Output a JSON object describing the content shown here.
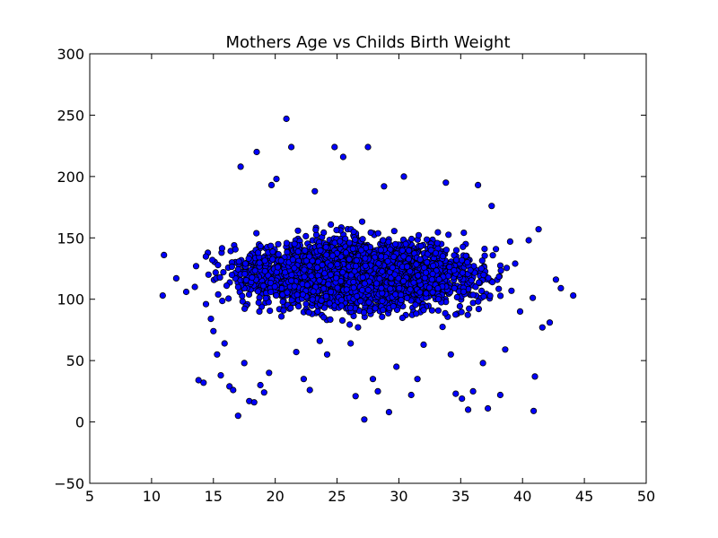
{
  "chart_data": {
    "type": "scatter",
    "title": "Mothers Age vs Childs Birth Weight",
    "xlabel": "",
    "ylabel": "",
    "xlim": [
      5,
      50
    ],
    "ylim": [
      -50,
      300
    ],
    "x_ticks": [
      "5",
      "10",
      "15",
      "20",
      "25",
      "30",
      "35",
      "40",
      "45",
      "50"
    ],
    "y_ticks": [
      "300",
      "250",
      "200",
      "150",
      "100",
      "50",
      "0",
      "−50"
    ],
    "grid": false,
    "legend": "none",
    "marker_color": "#0000ff",
    "marker_edge_color": "#000000",
    "points": [
      [
        10.9,
        103
      ],
      [
        11.0,
        136
      ],
      [
        12.0,
        117
      ],
      [
        12.8,
        106
      ],
      [
        13.5,
        110
      ],
      [
        13.6,
        127
      ],
      [
        13.8,
        34
      ],
      [
        14.2,
        32
      ],
      [
        14.4,
        96
      ],
      [
        14.6,
        120
      ],
      [
        14.8,
        84
      ],
      [
        15.0,
        74
      ],
      [
        15.3,
        55
      ],
      [
        15.6,
        38
      ],
      [
        15.9,
        64
      ],
      [
        16.3,
        29
      ],
      [
        16.6,
        26
      ],
      [
        17.0,
        5
      ],
      [
        17.2,
        208
      ],
      [
        17.5,
        48
      ],
      [
        17.9,
        17
      ],
      [
        18.3,
        16
      ],
      [
        18.5,
        220
      ],
      [
        18.8,
        30
      ],
      [
        19.1,
        24
      ],
      [
        19.5,
        40
      ],
      [
        19.7,
        193
      ],
      [
        20.1,
        198
      ],
      [
        20.5,
        86
      ],
      [
        20.9,
        247
      ],
      [
        21.3,
        224
      ],
      [
        21.7,
        57
      ],
      [
        22.3,
        35
      ],
      [
        22.8,
        26
      ],
      [
        23.2,
        188
      ],
      [
        23.6,
        66
      ],
      [
        24.2,
        55
      ],
      [
        24.8,
        224
      ],
      [
        25.5,
        216
      ],
      [
        26.1,
        64
      ],
      [
        26.5,
        21
      ],
      [
        27.2,
        2
      ],
      [
        27.5,
        224
      ],
      [
        27.9,
        35
      ],
      [
        28.3,
        25
      ],
      [
        28.8,
        192
      ],
      [
        29.2,
        8
      ],
      [
        29.8,
        45
      ],
      [
        30.4,
        200
      ],
      [
        31.0,
        22
      ],
      [
        31.5,
        35
      ],
      [
        32.0,
        63
      ],
      [
        32.6,
        140
      ],
      [
        33.2,
        100
      ],
      [
        33.8,
        195
      ],
      [
        34.2,
        55
      ],
      [
        34.6,
        23
      ],
      [
        35.1,
        19
      ],
      [
        35.6,
        10
      ],
      [
        36.0,
        25
      ],
      [
        36.4,
        193
      ],
      [
        36.8,
        48
      ],
      [
        37.2,
        11
      ],
      [
        37.5,
        176
      ],
      [
        38.2,
        22
      ],
      [
        38.6,
        59
      ],
      [
        39.0,
        147
      ],
      [
        39.4,
        129
      ],
      [
        39.8,
        90
      ],
      [
        40.5,
        148
      ],
      [
        40.9,
        9
      ],
      [
        41.0,
        37
      ],
      [
        41.3,
        157
      ],
      [
        41.6,
        77
      ],
      [
        42.2,
        81
      ],
      [
        42.7,
        116
      ],
      [
        43.1,
        109
      ],
      [
        44.1,
        103
      ]
    ]
  }
}
